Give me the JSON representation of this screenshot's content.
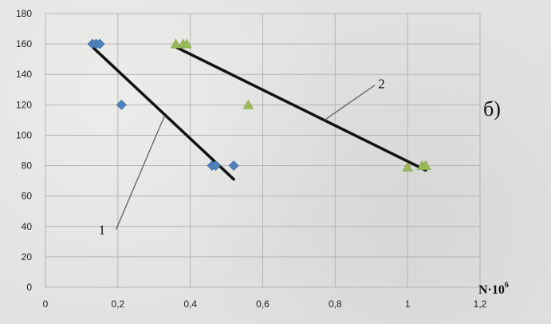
{
  "chart_data": {
    "type": "scatter",
    "panel_label": "б)",
    "xlabel": {
      "base": "N·10",
      "exponent": "6"
    },
    "ylabel": "",
    "xlim": [
      0,
      1.2
    ],
    "ylim": [
      0,
      180
    ],
    "x_ticks": [
      "0",
      "0,2",
      "0,4",
      "0,6",
      "0,8",
      "1",
      "1,2"
    ],
    "y_ticks": [
      "0",
      "20",
      "40",
      "60",
      "80",
      "100",
      "120",
      "140",
      "160",
      "180"
    ],
    "grid": true,
    "colors": {
      "series_1": "#4f81bd",
      "series_2": "#9bbb59",
      "fit": "#111111",
      "grid": "#b4b4b4",
      "leader": "#555555"
    },
    "series": [
      {
        "label": "1",
        "marker": "diamond",
        "points": [
          [
            0.13,
            160
          ],
          [
            0.14,
            160
          ],
          [
            0.15,
            160
          ],
          [
            0.21,
            120
          ],
          [
            0.46,
            80
          ],
          [
            0.47,
            80
          ],
          [
            0.52,
            80
          ]
        ],
        "fit": [
          [
            0.13,
            158
          ],
          [
            0.52,
            71
          ]
        ]
      },
      {
        "label": "2",
        "marker": "triangle",
        "points": [
          [
            0.36,
            160
          ],
          [
            0.38,
            160
          ],
          [
            0.39,
            160
          ],
          [
            0.56,
            120
          ],
          [
            1.0,
            79
          ],
          [
            1.04,
            80
          ],
          [
            1.05,
            80
          ]
        ],
        "fit": [
          [
            0.36,
            158
          ],
          [
            1.05,
            77
          ]
        ]
      }
    ]
  }
}
